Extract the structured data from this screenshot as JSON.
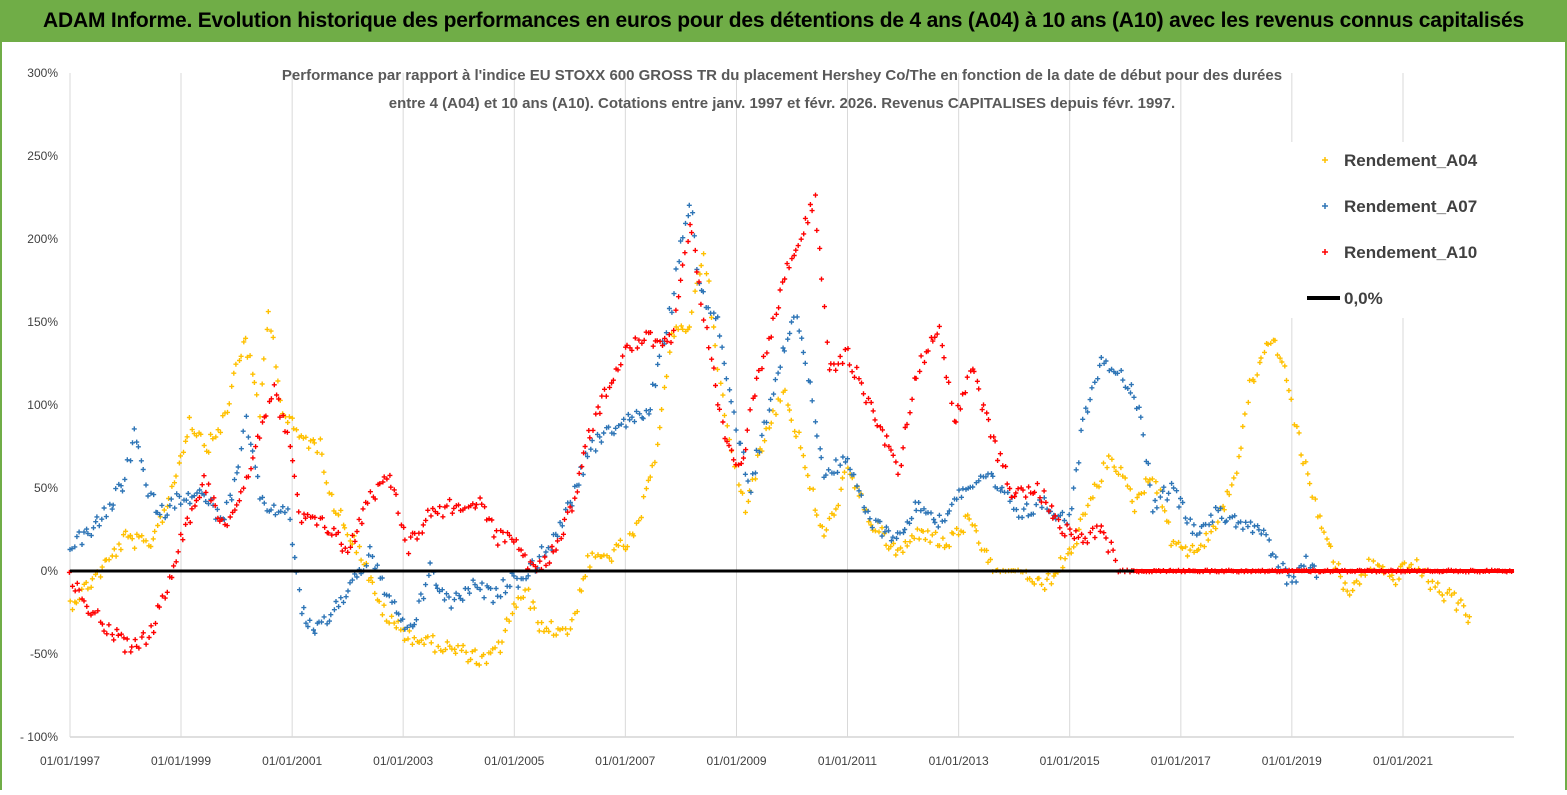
{
  "header": {
    "title": "ADAM Informe. Evolution historique des performances en euros pour des détentions de 4 ans (A04) à 10 ans (A10) avec les revenus connus capitalisés"
  },
  "chart_data": {
    "type": "scatter",
    "title_lines": [
      "Performance par rapport à l'indice EU STOXX 600 GROSS TR  du placement Hershey Co/The en fonction de la date de début pour des durées",
      "entre 4 (A04) et 10 ans (A10). Cotations entre janv. 1997 et févr. 2026. Revenus CAPITALISES depuis févr. 1997."
    ],
    "xlabel": "",
    "ylabel": "",
    "x_range": [
      "1997-01-01",
      "2023-01-01"
    ],
    "ylim": [
      -100,
      300
    ],
    "y_ticks": [
      "300%",
      "250%",
      "200%",
      "150%",
      "100%",
      "50%",
      "0%",
      "-50%",
      "- 100%"
    ],
    "x_ticks": [
      "01/01/1997",
      "01/01/1999",
      "01/01/2001",
      "01/01/2003",
      "01/01/2005",
      "01/01/2007",
      "01/01/2009",
      "01/01/2011",
      "01/01/2013",
      "01/01/2015",
      "01/01/2017",
      "01/01/2019",
      "01/01/2021"
    ],
    "grid": "vertical",
    "legend_position": "top-right",
    "series": [
      {
        "name": "Rendement_A04",
        "color": "#ffc000",
        "marker": "plus",
        "points": [
          [
            "1997-01-01",
            -20
          ],
          [
            "1997-06-01",
            -5
          ],
          [
            "1997-09-01",
            5
          ],
          [
            "1998-01-01",
            20
          ],
          [
            "1998-06-01",
            15
          ],
          [
            "1998-10-01",
            40
          ],
          [
            "1999-01-01",
            70
          ],
          [
            "1999-03-01",
            90
          ],
          [
            "1999-07-01",
            75
          ],
          [
            "1999-11-01",
            95
          ],
          [
            "2000-01-01",
            125
          ],
          [
            "2000-03-01",
            140
          ],
          [
            "2000-06-01",
            95
          ],
          [
            "2000-08-01",
            160
          ],
          [
            "2000-11-01",
            95
          ],
          [
            "2001-03-01",
            80
          ],
          [
            "2001-07-01",
            75
          ],
          [
            "2001-10-01",
            40
          ],
          [
            "2002-01-01",
            25
          ],
          [
            "2002-04-01",
            10
          ],
          [
            "2002-07-01",
            -15
          ],
          [
            "2002-10-01",
            -30
          ],
          [
            "2003-03-01",
            -40
          ],
          [
            "2003-09-01",
            -45
          ],
          [
            "2004-03-01",
            -50
          ],
          [
            "2004-07-01",
            -55
          ],
          [
            "2004-10-01",
            -45
          ],
          [
            "2005-01-01",
            -20
          ],
          [
            "2005-04-01",
            -15
          ],
          [
            "2005-07-01",
            -35
          ],
          [
            "2006-01-01",
            -35
          ],
          [
            "2006-05-01",
            5
          ],
          [
            "2006-10-01",
            10
          ],
          [
            "2007-03-01",
            20
          ],
          [
            "2007-07-01",
            60
          ],
          [
            "2007-11-01",
            140
          ],
          [
            "2008-03-01",
            150
          ],
          [
            "2008-06-01",
            195
          ],
          [
            "2008-09-01",
            120
          ],
          [
            "2008-12-01",
            70
          ],
          [
            "2009-03-01",
            40
          ],
          [
            "2009-07-01",
            80
          ],
          [
            "2009-11-01",
            110
          ],
          [
            "2010-03-01",
            75
          ],
          [
            "2010-05-01",
            50
          ],
          [
            "2010-08-01",
            20
          ],
          [
            "2011-01-01",
            60
          ],
          [
            "2011-06-01",
            30
          ],
          [
            "2011-12-01",
            10
          ],
          [
            "2012-05-01",
            25
          ],
          [
            "2012-10-01",
            15
          ],
          [
            "2013-03-01",
            30
          ],
          [
            "2013-09-01",
            0
          ],
          [
            "2014-03-01",
            0
          ],
          [
            "2014-07-01",
            -10
          ],
          [
            "2015-01-01",
            10
          ],
          [
            "2015-06-01",
            45
          ],
          [
            "2015-10-01",
            70
          ],
          [
            "2016-03-01",
            40
          ],
          [
            "2016-07-01",
            60
          ],
          [
            "2016-11-01",
            20
          ],
          [
            "2017-04-01",
            10
          ],
          [
            "2017-09-01",
            30
          ],
          [
            "2018-01-01",
            60
          ],
          [
            "2018-04-01",
            110
          ],
          [
            "2018-08-01",
            140
          ],
          [
            "2018-11-01",
            130
          ],
          [
            "2019-02-01",
            85
          ],
          [
            "2019-05-01",
            50
          ],
          [
            "2019-09-01",
            15
          ],
          [
            "2020-01-01",
            -15
          ],
          [
            "2020-06-01",
            5
          ],
          [
            "2020-11-01",
            -5
          ],
          [
            "2021-03-01",
            5
          ],
          [
            "2021-08-01",
            -10
          ],
          [
            "2022-01-01",
            -20
          ],
          [
            "2022-04-01",
            -30
          ]
        ]
      },
      {
        "name": "Rendement_A07",
        "color": "#2e75b6",
        "marker": "plus",
        "points": [
          [
            "1997-01-01",
            15
          ],
          [
            "1997-06-01",
            25
          ],
          [
            "1997-09-01",
            35
          ],
          [
            "1998-01-01",
            55
          ],
          [
            "1998-03-01",
            85
          ],
          [
            "1998-06-01",
            45
          ],
          [
            "1998-09-01",
            35
          ],
          [
            "1999-01-01",
            45
          ],
          [
            "1999-06-01",
            45
          ],
          [
            "1999-10-01",
            30
          ],
          [
            "2000-01-01",
            55
          ],
          [
            "2000-03-01",
            90
          ],
          [
            "2000-06-01",
            45
          ],
          [
            "2000-09-01",
            35
          ],
          [
            "2000-12-01",
            40
          ],
          [
            "2001-03-01",
            -25
          ],
          [
            "2001-06-01",
            -35
          ],
          [
            "2001-10-01",
            -25
          ],
          [
            "2002-01-01",
            -10
          ],
          [
            "2002-06-01",
            10
          ],
          [
            "2002-09-01",
            -10
          ],
          [
            "2002-12-01",
            -30
          ],
          [
            "2003-03-01",
            -35
          ],
          [
            "2003-07-01",
            0
          ],
          [
            "2003-11-01",
            -20
          ],
          [
            "2004-04-01",
            -10
          ],
          [
            "2004-09-01",
            -15
          ],
          [
            "2004-12-01",
            -5
          ],
          [
            "2005-03-01",
            -5
          ],
          [
            "2005-07-01",
            10
          ],
          [
            "2005-10-01",
            20
          ],
          [
            "2006-01-01",
            40
          ],
          [
            "2006-05-01",
            70
          ],
          [
            "2006-09-01",
            85
          ],
          [
            "2007-01-01",
            90
          ],
          [
            "2007-06-01",
            95
          ],
          [
            "2007-11-01",
            160
          ],
          [
            "2008-01-01",
            195
          ],
          [
            "2008-03-01",
            225
          ],
          [
            "2008-05-01",
            170
          ],
          [
            "2008-09-01",
            150
          ],
          [
            "2008-12-01",
            100
          ],
          [
            "2009-04-01",
            50
          ],
          [
            "2009-08-01",
            100
          ],
          [
            "2009-12-01",
            140
          ],
          [
            "2010-02-01",
            155
          ],
          [
            "2010-05-01",
            110
          ],
          [
            "2010-08-01",
            60
          ],
          [
            "2011-01-01",
            65
          ],
          [
            "2011-06-01",
            30
          ],
          [
            "2011-12-01",
            20
          ],
          [
            "2012-04-01",
            40
          ],
          [
            "2012-09-01",
            30
          ],
          [
            "2013-02-01",
            50
          ],
          [
            "2013-08-01",
            55
          ],
          [
            "2014-02-01",
            35
          ],
          [
            "2014-08-01",
            40
          ],
          [
            "2015-01-01",
            30
          ],
          [
            "2015-04-01",
            90
          ],
          [
            "2015-08-01",
            130
          ],
          [
            "2016-01-01",
            115
          ],
          [
            "2016-04-01",
            100
          ],
          [
            "2016-07-01",
            40
          ],
          [
            "2016-11-01",
            50
          ],
          [
            "2017-04-01",
            25
          ],
          [
            "2017-09-01",
            35
          ],
          [
            "2018-02-01",
            30
          ],
          [
            "2018-06-01",
            25
          ],
          [
            "2018-09-01",
            10
          ],
          [
            "2019-01-01",
            -10
          ],
          [
            "2019-04-01",
            5
          ],
          [
            "2019-07-01",
            0
          ]
        ]
      },
      {
        "name": "Rendement_A10",
        "color": "#ff0000",
        "marker": "plus",
        "points": [
          [
            "1997-01-01",
            -5
          ],
          [
            "1997-06-01",
            -25
          ],
          [
            "1997-09-01",
            -35
          ],
          [
            "1998-01-01",
            -45
          ],
          [
            "1998-06-01",
            -40
          ],
          [
            "1998-10-01",
            -10
          ],
          [
            "1999-01-01",
            20
          ],
          [
            "1999-06-01",
            55
          ],
          [
            "1999-10-01",
            30
          ],
          [
            "2000-01-01",
            35
          ],
          [
            "2000-05-01",
            75
          ],
          [
            "2000-09-01",
            110
          ],
          [
            "2000-12-01",
            80
          ],
          [
            "2001-03-01",
            30
          ],
          [
            "2001-06-01",
            30
          ],
          [
            "2001-10-01",
            25
          ],
          [
            "2002-01-01",
            10
          ],
          [
            "2002-05-01",
            40
          ],
          [
            "2002-10-01",
            60
          ],
          [
            "2003-02-01",
            15
          ],
          [
            "2003-07-01",
            35
          ],
          [
            "2004-01-01",
            40
          ],
          [
            "2004-06-01",
            40
          ],
          [
            "2004-09-01",
            20
          ],
          [
            "2005-01-01",
            20
          ],
          [
            "2005-05-01",
            0
          ],
          [
            "2005-09-01",
            10
          ],
          [
            "2006-01-01",
            35
          ],
          [
            "2006-05-01",
            80
          ],
          [
            "2006-09-01",
            110
          ],
          [
            "2007-01-01",
            135
          ],
          [
            "2007-06-01",
            140
          ],
          [
            "2007-11-01",
            140
          ],
          [
            "2008-03-01",
            210
          ],
          [
            "2008-06-01",
            150
          ],
          [
            "2008-10-01",
            85
          ],
          [
            "2009-02-01",
            60
          ],
          [
            "2009-05-01",
            110
          ],
          [
            "2009-08-01",
            140
          ],
          [
            "2009-12-01",
            185
          ],
          [
            "2010-03-01",
            200
          ],
          [
            "2010-06-01",
            225
          ],
          [
            "2010-09-01",
            120
          ],
          [
            "2011-01-01",
            130
          ],
          [
            "2011-06-01",
            100
          ],
          [
            "2011-12-01",
            60
          ],
          [
            "2012-04-01",
            120
          ],
          [
            "2012-09-01",
            150
          ],
          [
            "2012-12-01",
            90
          ],
          [
            "2013-04-01",
            120
          ],
          [
            "2013-09-01",
            75
          ],
          [
            "2014-01-01",
            45
          ],
          [
            "2014-06-01",
            50
          ],
          [
            "2014-12-01",
            25
          ],
          [
            "2015-04-01",
            20
          ],
          [
            "2015-08-01",
            25
          ],
          [
            "2015-12-01",
            0
          ],
          [
            "2016-03-01",
            0
          ],
          [
            "2017-01-01",
            0
          ],
          [
            "2018-01-01",
            0
          ],
          [
            "2019-01-01",
            0
          ],
          [
            "2020-01-01",
            0
          ],
          [
            "2021-01-01",
            0
          ],
          [
            "2022-01-01",
            0
          ],
          [
            "2023-01-01",
            0
          ]
        ]
      },
      {
        "name": "0,0%",
        "color": "#000000",
        "marker": "line",
        "points": [
          [
            "1997-01-01",
            0
          ],
          [
            "2023-01-01",
            0
          ]
        ]
      }
    ]
  }
}
